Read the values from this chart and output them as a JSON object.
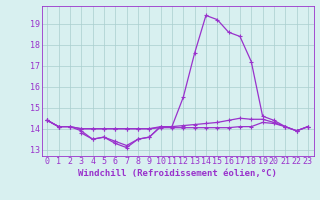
{
  "x_hours": [
    0,
    1,
    2,
    3,
    4,
    5,
    6,
    7,
    8,
    9,
    10,
    11,
    12,
    13,
    14,
    15,
    16,
    17,
    18,
    19,
    20,
    21,
    22,
    23
  ],
  "line_main": [
    14.4,
    14.1,
    14.1,
    13.9,
    13.5,
    13.6,
    13.4,
    13.2,
    13.5,
    13.6,
    14.1,
    14.1,
    15.5,
    17.6,
    19.4,
    19.2,
    18.6,
    18.4,
    17.2,
    14.6,
    14.4,
    14.1,
    13.9,
    14.1
  ],
  "line_flat1": [
    14.4,
    14.1,
    14.1,
    14.0,
    14.0,
    14.0,
    14.0,
    14.0,
    14.0,
    14.0,
    14.1,
    14.1,
    14.15,
    14.2,
    14.25,
    14.3,
    14.4,
    14.5,
    14.45,
    14.45,
    14.3,
    14.1,
    13.9,
    14.1
  ],
  "line_flat2": [
    14.4,
    14.1,
    14.1,
    14.0,
    14.0,
    14.0,
    14.0,
    14.0,
    14.0,
    14.0,
    14.05,
    14.05,
    14.05,
    14.05,
    14.05,
    14.05,
    14.05,
    14.1,
    14.1,
    14.3,
    14.25,
    14.1,
    13.9,
    14.1
  ],
  "line_dip": [
    14.4,
    14.1,
    null,
    13.8,
    13.5,
    13.6,
    13.3,
    13.1,
    13.5,
    13.6,
    14.1,
    14.1,
    null,
    null,
    null,
    null,
    null,
    null,
    null,
    null,
    null,
    null,
    null,
    null
  ],
  "background_color": "#d8f0f0",
  "grid_color": "#aacece",
  "line_color": "#9932CC",
  "ylim": [
    12.7,
    19.85
  ],
  "yticks": [
    13,
    14,
    15,
    16,
    17,
    18,
    19
  ],
  "xlim": [
    -0.5,
    23.5
  ],
  "xlabel": "Windchill (Refroidissement éolien,°C)",
  "xlabel_fontsize": 6.5,
  "tick_fontsize": 6.0,
  "lw": 0.9,
  "ms": 2.5
}
